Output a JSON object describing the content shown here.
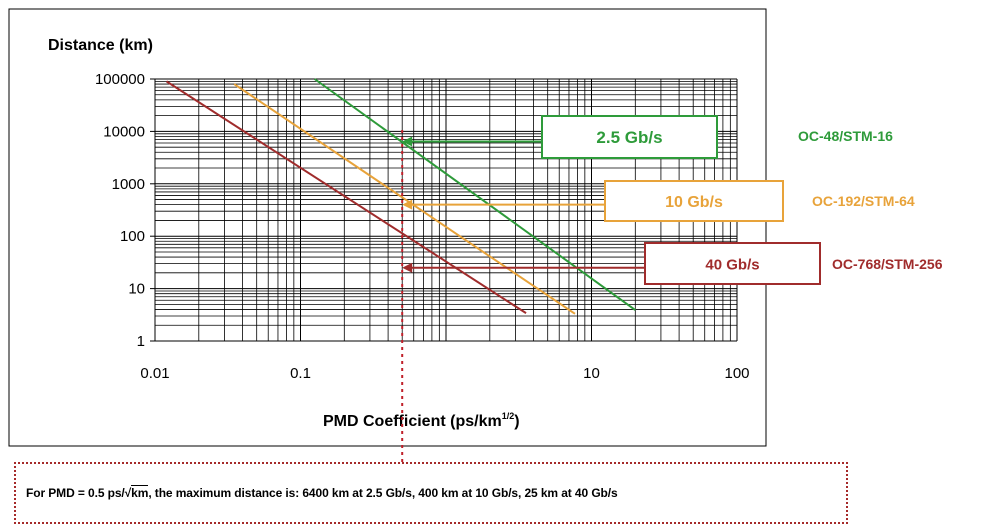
{
  "chart_data": {
    "type": "line",
    "xscale": "log",
    "yscale": "log",
    "xlim": [
      0.01,
      100
    ],
    "ylim": [
      1,
      100000
    ],
    "grid": true,
    "ylabel": "Distance (km)",
    "xlabel_main": "PMD Coefficient (ps/km",
    "xlabel_sup": "1/2",
    "xlabel_end": ")",
    "xticks": [
      {
        "value": 0.01,
        "label": "0.01"
      },
      {
        "value": 0.1,
        "label": "0.1"
      },
      {
        "value": 10,
        "label": "10"
      },
      {
        "value": 100,
        "label": "100"
      }
    ],
    "yticks": [
      {
        "value": 1,
        "label": "1"
      },
      {
        "value": 10,
        "label": "10"
      },
      {
        "value": 100,
        "label": "100"
      },
      {
        "value": 1000,
        "label": "1000"
      },
      {
        "value": 10000,
        "label": "10000"
      },
      {
        "value": 100000,
        "label": "100000"
      }
    ],
    "series": [
      {
        "rate": "2.5 Gb/s",
        "standard": "OC-48/STM-16",
        "color": "#2e9b3a",
        "points": [
          [
            0.125,
            100000
          ],
          [
            20,
            3.9
          ]
        ],
        "marker": [
          0.5,
          6400
        ]
      },
      {
        "rate": "10 Gb/s",
        "standard": "OC-192/STM-64",
        "color": "#e8a33a",
        "points": [
          [
            0.035,
            80000
          ],
          [
            7.7,
            3.3
          ]
        ],
        "marker": [
          0.5,
          400
        ]
      },
      {
        "rate": "40 Gb/s",
        "standard": "OC-768/STM-256",
        "color": "#a02c2c",
        "points": [
          [
            0.012,
            90000
          ],
          [
            3.55,
            3.4
          ]
        ],
        "marker": [
          0.5,
          25
        ]
      }
    ],
    "reference_line": {
      "x": 0.5,
      "color": "#c0202a",
      "style": "dotted"
    }
  },
  "note": {
    "prefix": "For PMD = 0.5 ps/",
    "root": "km",
    "suffix": ", the maximum distance is: 6400 km at 2.5 Gb/s, 400 km at 10 Gb/s, 25 km at 40 Gb/s"
  }
}
